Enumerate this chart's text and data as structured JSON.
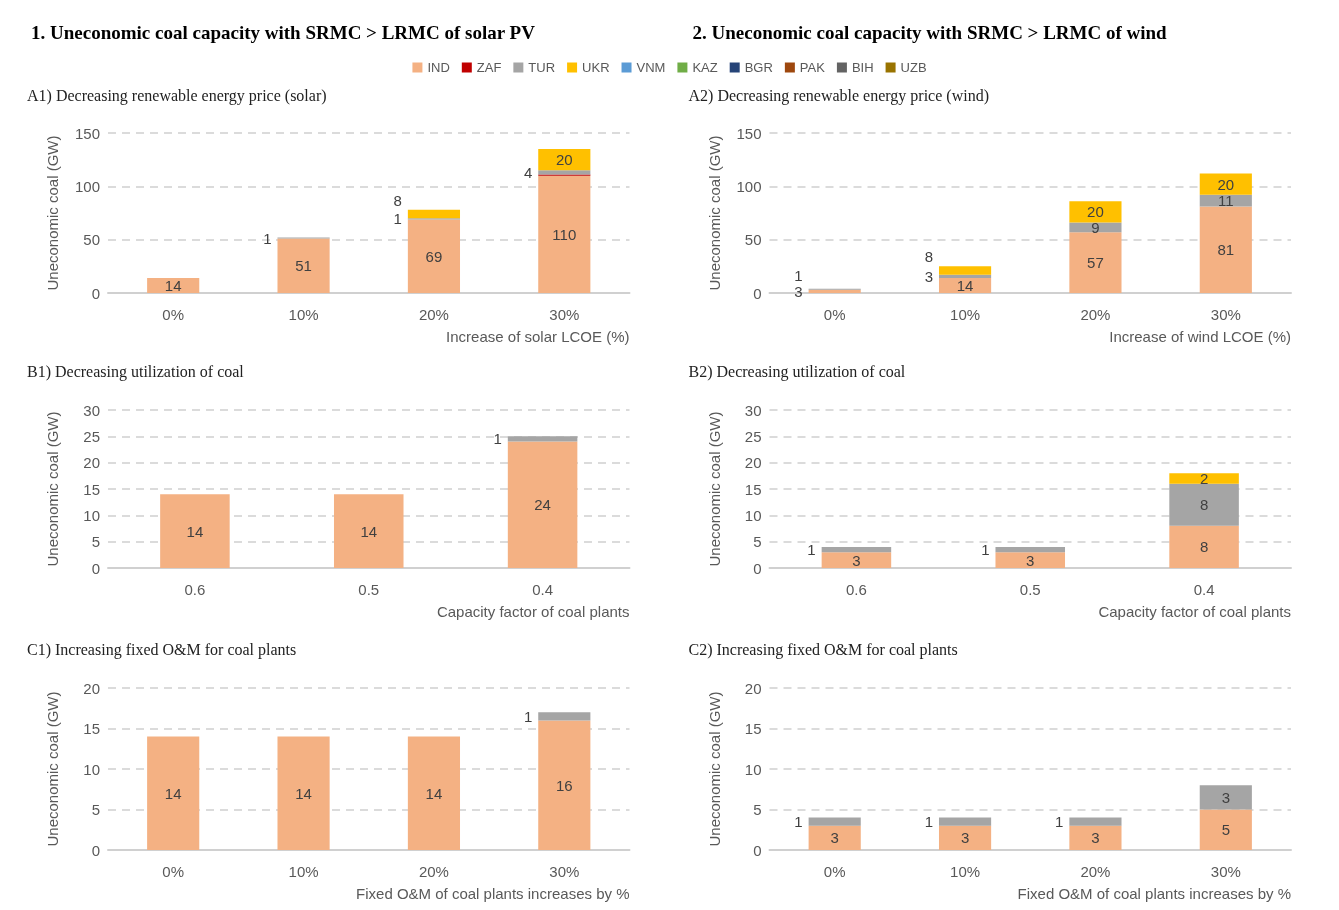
{
  "chart_data": [
    {
      "type": "bar",
      "stacked": true,
      "title": "1. Uneconomic coal capacity with SRMC > LRMC of solar PV",
      "subtitle": "A1) Decreasing renewable energy price (solar)",
      "categories": [
        "0%",
        "10%",
        "20%",
        "30%"
      ],
      "xlabel": "Increase of solar LCOE (%)",
      "ylabel": "Uneconomic coal (GW)",
      "ylim": [
        0,
        150
      ],
      "yticks": [
        0,
        50,
        100,
        150
      ],
      "grid": "y",
      "legend": "top",
      "data_labels": true,
      "series": [
        {
          "name": "IND",
          "color": "#f4b183",
          "values": [
            14,
            51,
            69,
            110
          ]
        },
        {
          "name": "ZAF",
          "color": "#c00000",
          "values": [
            null,
            null,
            null,
            1
          ],
          "value_labels": [
            null,
            null,
            null,
            null
          ]
        },
        {
          "name": "TUR",
          "color": "#a5a5a5",
          "values": [
            null,
            1,
            1,
            4
          ]
        },
        {
          "name": "UKR",
          "color": "#ffc000",
          "values": [
            null,
            null,
            8,
            20
          ]
        },
        {
          "name": "VNM",
          "color": "#5b9bd5",
          "values": [
            null,
            null,
            null,
            null
          ]
        },
        {
          "name": "KAZ",
          "color": "#70ad47",
          "values": [
            null,
            null,
            null,
            null
          ]
        },
        {
          "name": "BGR",
          "color": "#264478",
          "values": [
            null,
            null,
            null,
            null
          ]
        },
        {
          "name": "PAK",
          "color": "#9e480e",
          "values": [
            null,
            null,
            null,
            null
          ]
        },
        {
          "name": "BIH",
          "color": "#636363",
          "values": [
            null,
            null,
            null,
            null
          ]
        },
        {
          "name": "UZB",
          "color": "#997300",
          "values": [
            null,
            null,
            null,
            null
          ]
        }
      ]
    },
    {
      "type": "bar",
      "stacked": true,
      "title": "2. Uneconomic coal capacity with SRMC > LRMC of wind",
      "subtitle": "A2) Decreasing renewable energy price (wind)",
      "categories": [
        "0%",
        "10%",
        "20%",
        "30%"
      ],
      "xlabel": "Increase of wind LCOE (%)",
      "ylabel": "Uneconomic coal (GW)",
      "ylim": [
        0,
        150
      ],
      "yticks": [
        0,
        50,
        100,
        150
      ],
      "grid": "y",
      "data_labels": true,
      "series": [
        {
          "name": "IND",
          "color": "#f4b183",
          "values": [
            3,
            14,
            57,
            81
          ]
        },
        {
          "name": "TUR",
          "color": "#a5a5a5",
          "values": [
            1,
            3,
            9,
            11
          ]
        },
        {
          "name": "UKR",
          "color": "#ffc000",
          "values": [
            null,
            8,
            20,
            20
          ]
        }
      ]
    },
    {
      "type": "bar",
      "stacked": true,
      "title": "B1) Decreasing utilization of coal",
      "categories": [
        "0.6",
        "0.5",
        "0.4"
      ],
      "xlabel": "Capacity factor of coal plants",
      "ylabel": "Uneconomic coal (GW)",
      "ylim": [
        0,
        30
      ],
      "yticks": [
        0,
        5,
        10,
        15,
        20,
        25,
        30
      ],
      "grid": "y",
      "data_labels": true,
      "series": [
        {
          "name": "IND",
          "color": "#f4b183",
          "values": [
            14,
            14,
            24
          ]
        },
        {
          "name": "TUR",
          "color": "#a5a5a5",
          "values": [
            null,
            null,
            1
          ]
        }
      ]
    },
    {
      "type": "bar",
      "stacked": true,
      "title": "B2) Decreasing utilization of coal",
      "categories": [
        "0.6",
        "0.5",
        "0.4"
      ],
      "xlabel": "Capacity factor of coal plants",
      "ylabel": "Uneconomic coal (GW)",
      "ylim": [
        0,
        30
      ],
      "yticks": [
        0,
        5,
        10,
        15,
        20,
        25,
        30
      ],
      "grid": "y",
      "data_labels": true,
      "series": [
        {
          "name": "IND",
          "color": "#f4b183",
          "values": [
            3,
            3,
            8
          ]
        },
        {
          "name": "TUR",
          "color": "#a5a5a5",
          "values": [
            1,
            1,
            8
          ]
        },
        {
          "name": "UKR",
          "color": "#ffc000",
          "values": [
            null,
            null,
            2
          ]
        }
      ]
    },
    {
      "type": "bar",
      "stacked": true,
      "title": "C1) Increasing fixed O&M for coal plants",
      "categories": [
        "0%",
        "10%",
        "20%",
        "30%"
      ],
      "xlabel": "Fixed O&M of coal plants increases by %",
      "ylabel": "Uneconomic coal (GW)",
      "ylim": [
        0,
        20
      ],
      "yticks": [
        0,
        5,
        10,
        15,
        20
      ],
      "grid": "y",
      "data_labels": true,
      "series": [
        {
          "name": "IND",
          "color": "#f4b183",
          "values": [
            14,
            14,
            14,
            16
          ]
        },
        {
          "name": "TUR",
          "color": "#a5a5a5",
          "values": [
            null,
            null,
            null,
            1
          ]
        }
      ]
    },
    {
      "type": "bar",
      "stacked": true,
      "title": "C2) Increasing fixed O&M for coal plants",
      "categories": [
        "0%",
        "10%",
        "20%",
        "30%"
      ],
      "xlabel": "Fixed O&M of coal plants increases by %",
      "ylabel": "Uneconomic coal (GW)",
      "ylim": [
        0,
        20
      ],
      "yticks": [
        0,
        5,
        10,
        15,
        20
      ],
      "grid": "y",
      "data_labels": true,
      "series": [
        {
          "name": "IND",
          "color": "#f4b183",
          "values": [
            3,
            3,
            3,
            5
          ]
        },
        {
          "name": "TUR",
          "color": "#a5a5a5",
          "values": [
            1,
            1,
            1,
            3
          ]
        }
      ]
    }
  ]
}
